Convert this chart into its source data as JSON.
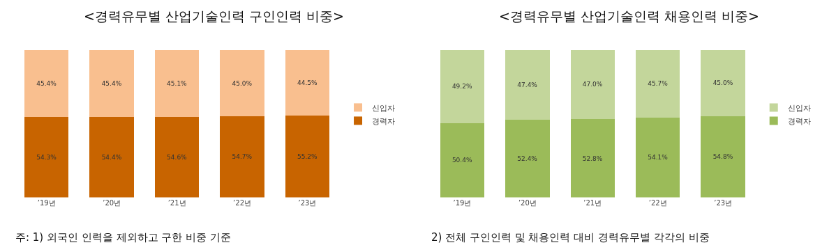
{
  "chart_data": [
    {
      "type": "bar",
      "stacked": true,
      "title": "<경력유무별 산업기술인력 구인인력 비중>",
      "categories": [
        "’19년",
        "’20년",
        "’21년",
        "’22년",
        "’23년"
      ],
      "legend": "right",
      "series": [
        {
          "name": "경력자",
          "color": "#c86400",
          "values": [
            54.3,
            54.4,
            54.6,
            54.7,
            55.2
          ],
          "value_labels": [
            "54.3%",
            "54.4%",
            "54.6%",
            "54.7%",
            "55.2%"
          ]
        },
        {
          "name": "신입자",
          "color": "#f9bf8f",
          "values": [
            45.4,
            45.4,
            45.1,
            45.0,
            44.5
          ],
          "value_labels": [
            "45.4%",
            "45.4%",
            "45.1%",
            "45.0%",
            "44.5%"
          ]
        }
      ],
      "annotations": [
        "주: 1) 외국인 인력을 제외하고 구한 비중 기준"
      ]
    },
    {
      "type": "bar",
      "stacked": true,
      "title": "<경력유무별 산업기술인력 채용인력 비중>",
      "categories": [
        "’19년",
        "’20년",
        "’21년",
        "’22년",
        "’23년"
      ],
      "legend": "right",
      "series": [
        {
          "name": "경력자",
          "color": "#9bbb59",
          "values": [
            50.4,
            52.4,
            52.8,
            54.1,
            54.8
          ],
          "value_labels": [
            "50.4%",
            "52.4%",
            "52.8%",
            "54.1%",
            "54.8%"
          ]
        },
        {
          "name": "신입자",
          "color": "#c3d69b",
          "values": [
            49.2,
            47.4,
            47.0,
            45.7,
            45.0
          ],
          "value_labels": [
            "49.2%",
            "47.4%",
            "47.0%",
            "45.7%",
            "45.0%"
          ]
        }
      ],
      "annotations": [
        "2) 전체 구인인력 및 채용인력 대비 경력유무별 각각의 비중"
      ]
    }
  ]
}
